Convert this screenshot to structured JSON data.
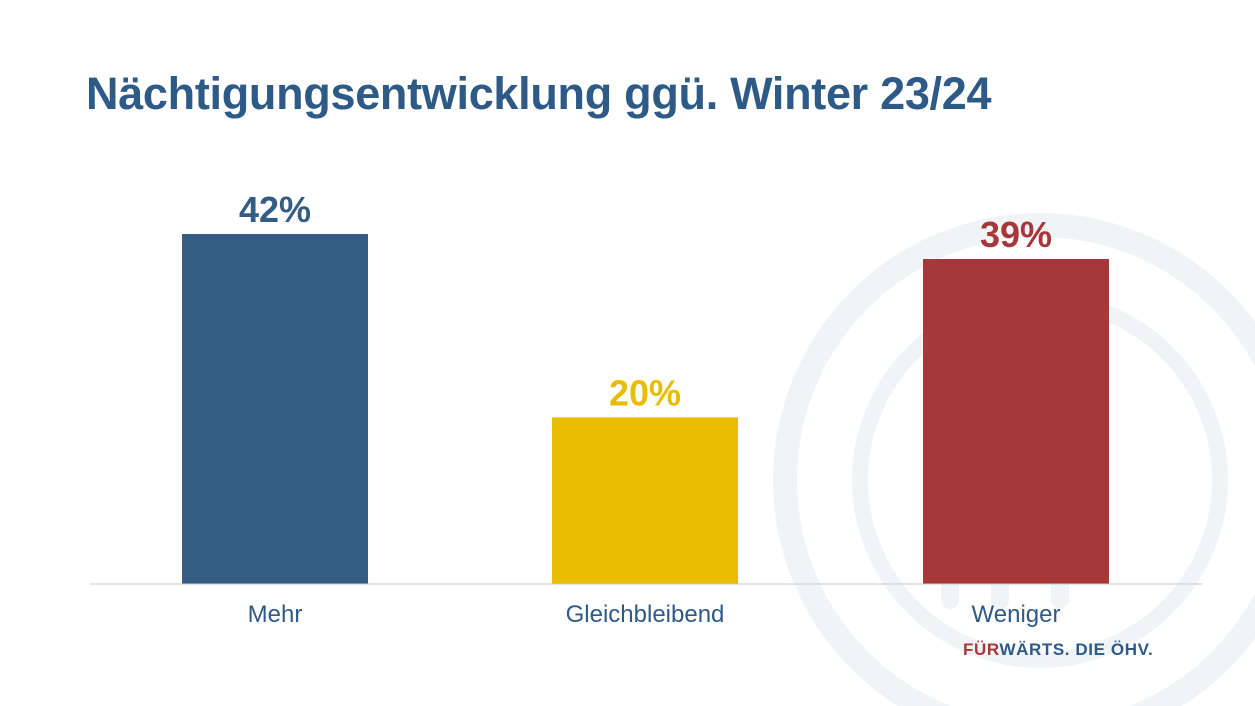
{
  "slide": {
    "title": "Nächtigungsentwicklung ggü. Winter 23/24",
    "slogan_part1": "FÜR",
    "slogan_part2": "WÄRTS. DIE ÖHV."
  },
  "colors": {
    "title": "#2e5a87",
    "series": [
      "#335d85",
      "#e8bd00",
      "#a7383a"
    ],
    "axis_line": "#c8c8c8",
    "category_label": "#2e5a87",
    "slogan_red": "#a7383a",
    "slogan_blue": "#2e5a87",
    "watermark": "#f1f4f7"
  },
  "chart_data": {
    "type": "bar",
    "title": "Nächtigungsentwicklung ggü. Winter 23/24",
    "categories": [
      "Mehr",
      "Gleichbleibend",
      "Weniger"
    ],
    "values": [
      42,
      20,
      39
    ],
    "value_labels": [
      "42%",
      "20%",
      "39%"
    ],
    "unit": "%",
    "ylim": [
      0,
      42
    ],
    "xlabel": "",
    "ylabel": "",
    "grid": false,
    "legend": "none"
  }
}
